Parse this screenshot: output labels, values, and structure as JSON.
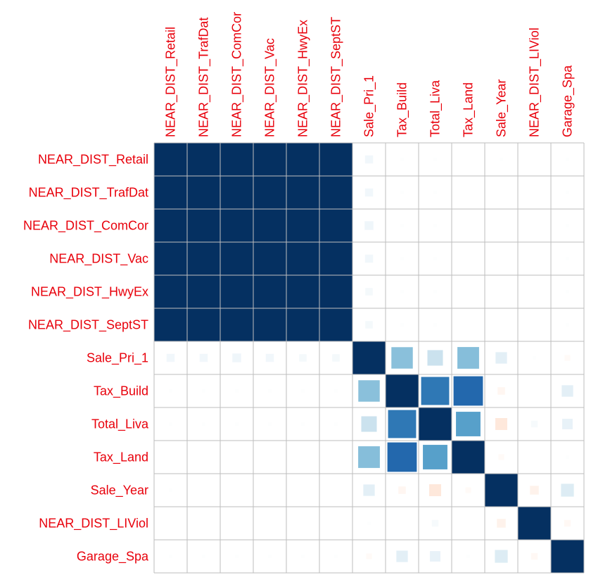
{
  "chart_data": {
    "type": "heatmap",
    "subtype": "correlation-matrix-squares",
    "variables": [
      "NEAR_DIST_Retail",
      "NEAR_DIST_TrafDat",
      "NEAR_DIST_ComCor",
      "NEAR_DIST_Vac",
      "NEAR_DIST_HwyEx",
      "NEAR_DIST_SeptST",
      "Sale_Pri_1",
      "Tax_Build",
      "Total_Liva",
      "Tax_Land",
      "Sale_Year",
      "NEAR_DIST_LIViol",
      "Garage_Spa"
    ],
    "matrix": [
      [
        1,
        1,
        1,
        1,
        1,
        1,
        0.06,
        0.01,
        0.01,
        0,
        0.01,
        0,
        0.01
      ],
      [
        1,
        1,
        1,
        1,
        1,
        1,
        0.06,
        0.01,
        0.01,
        0,
        0,
        0,
        0.01
      ],
      [
        1,
        1,
        1,
        1,
        1,
        1,
        0.07,
        0.01,
        0.01,
        0,
        0,
        0,
        0.01
      ],
      [
        1,
        1,
        1,
        1,
        1,
        1,
        0.06,
        0.01,
        0.01,
        0,
        0,
        0,
        0.01
      ],
      [
        1,
        1,
        1,
        1,
        1,
        1,
        0.05,
        0.01,
        0.01,
        0,
        0,
        0,
        0.01
      ],
      [
        1,
        1,
        1,
        1,
        1,
        1,
        0.05,
        0.01,
        0.01,
        0,
        0,
        0,
        0.01
      ],
      [
        0.06,
        0.06,
        0.07,
        0.06,
        0.05,
        0.05,
        1,
        0.42,
        0.22,
        0.43,
        0.12,
        0.01,
        -0.03
      ],
      [
        0.01,
        0.01,
        0.01,
        0.01,
        0.01,
        0.01,
        0.42,
        1,
        0.72,
        0.79,
        -0.05,
        0,
        0.12
      ],
      [
        0.01,
        0.01,
        0.01,
        0.01,
        0.01,
        0.01,
        0.22,
        0.72,
        1,
        0.55,
        -0.13,
        0.04,
        0.1
      ],
      [
        0,
        0,
        0,
        0,
        0,
        0,
        0.43,
        0.79,
        0.55,
        1,
        -0.03,
        0,
        0.01
      ],
      [
        0.01,
        0,
        0,
        0,
        0,
        0,
        0.12,
        -0.05,
        -0.13,
        -0.03,
        1,
        -0.07,
        0.15
      ],
      [
        0,
        0,
        0,
        0,
        0,
        0,
        0.01,
        0,
        0.04,
        0,
        -0.07,
        1,
        -0.04
      ],
      [
        0.01,
        0.01,
        0.01,
        0.01,
        0.01,
        0.01,
        -0.03,
        0.12,
        0.1,
        0.01,
        0.15,
        -0.04,
        1
      ]
    ],
    "value_range": [
      -1,
      1
    ],
    "colors": {
      "positive": "#053061",
      "negative": "#67001F",
      "label": "#E8000B",
      "grid": "#BEBEBE",
      "background": "#FFFFFF"
    },
    "grid": true,
    "legend": "none"
  }
}
